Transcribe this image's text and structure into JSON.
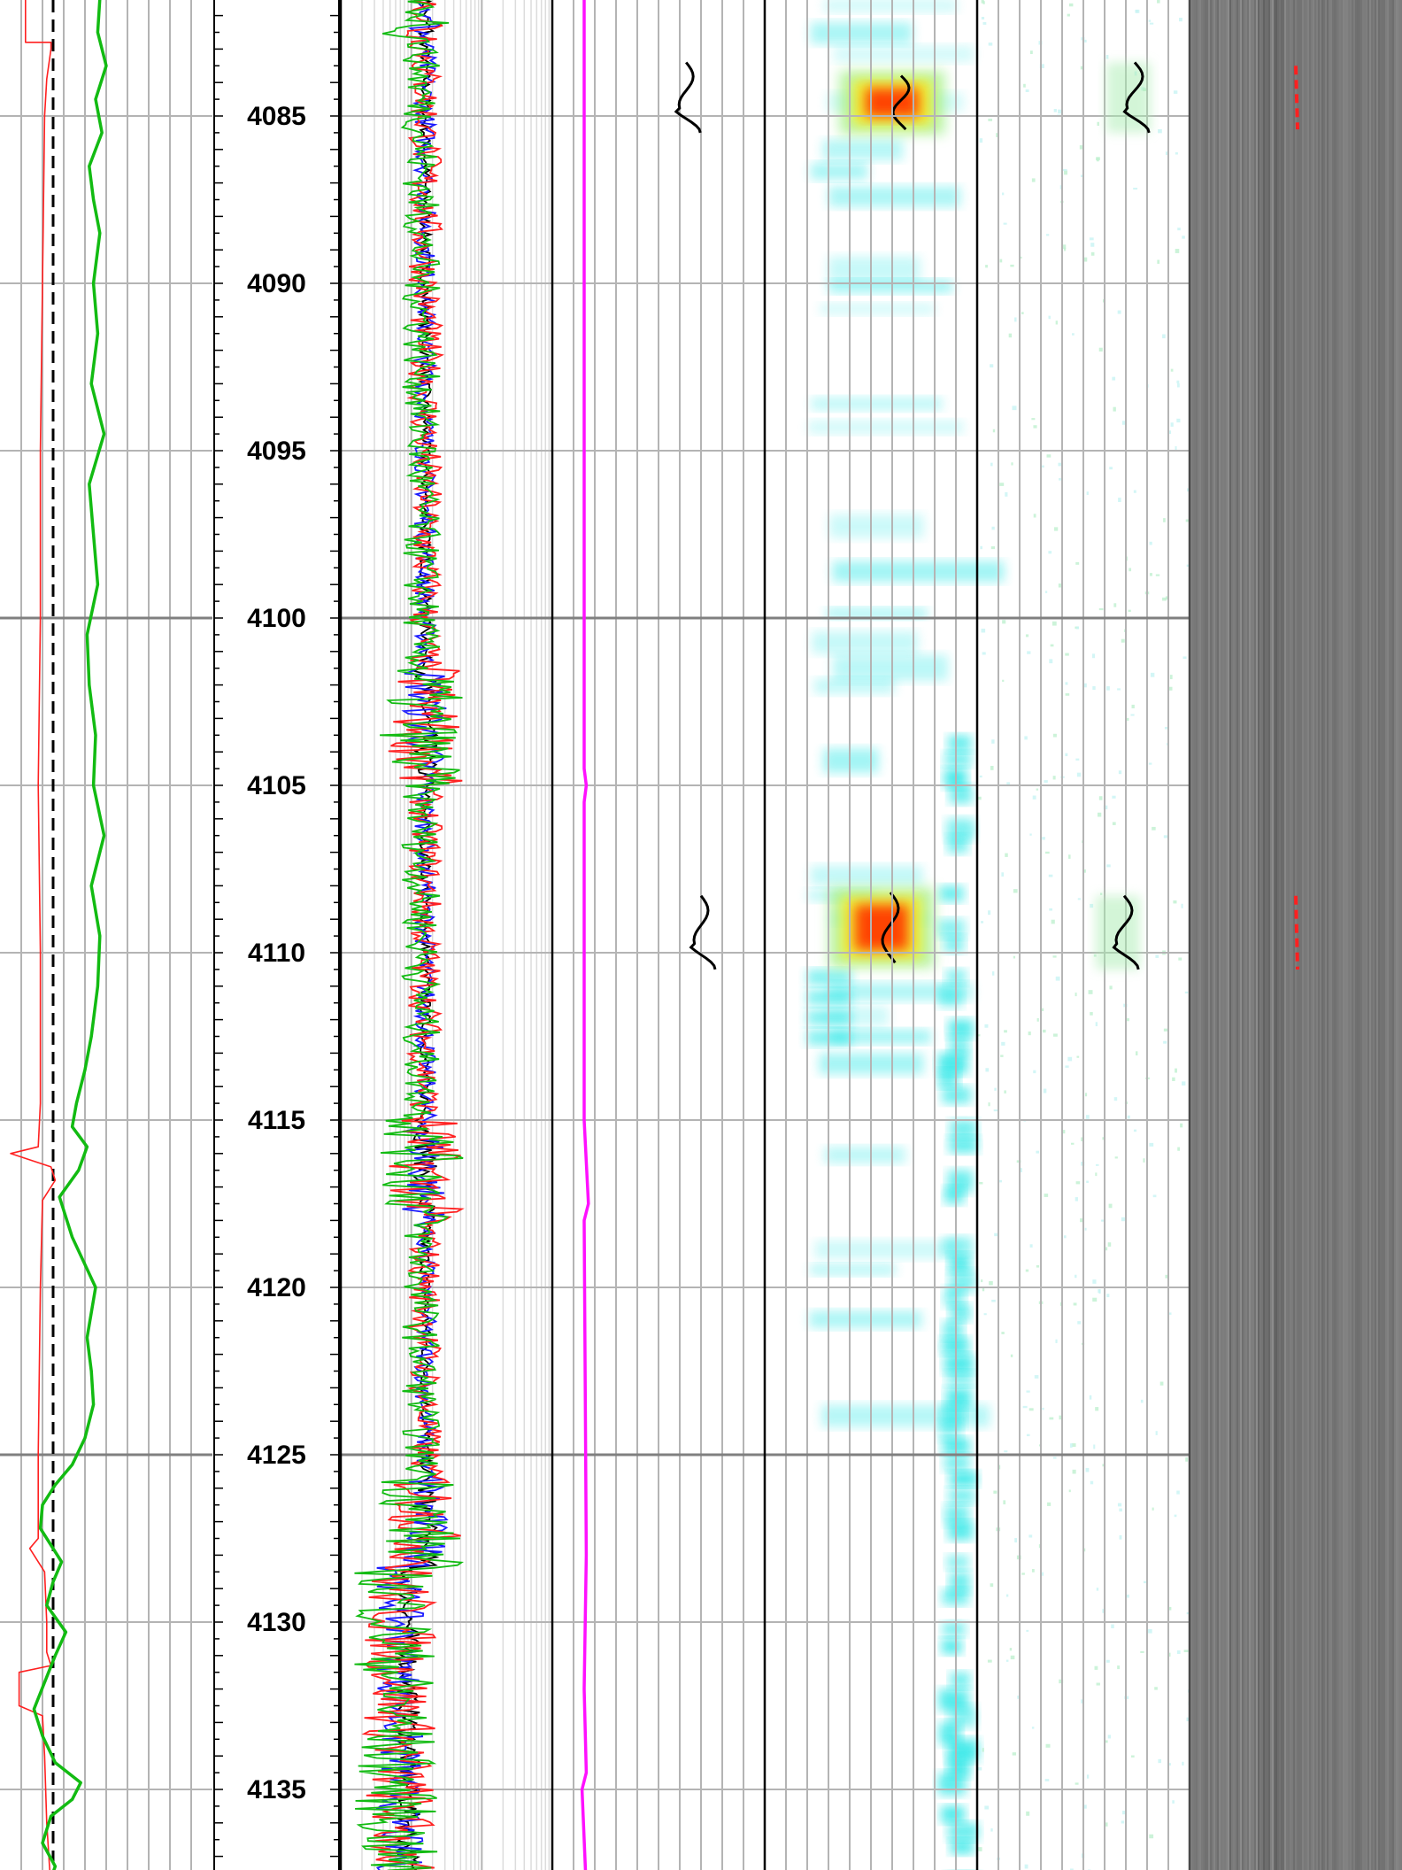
{
  "colors": {
    "background": "#ffffff",
    "grid": "#b4b4b4",
    "major_grid": "#808080",
    "track_border": "#000000",
    "red": "#ff2020",
    "green": "#12bb12",
    "blue": "#1a1aff",
    "magenta": "#ff10ff",
    "cyan": "#22e6e6",
    "black": "#000000",
    "image_gray": "#7c7c7c"
  },
  "chart_data": {
    "type": "line",
    "title": "",
    "depth_axis": {
      "range": [
        4081.5,
        4138.0
      ],
      "labels": [
        "4085",
        "4090",
        "4095",
        "4100",
        "4105",
        "4110",
        "4115",
        "4120",
        "4125",
        "4130",
        "4135"
      ],
      "major_depths": [
        4100,
        4125
      ],
      "minor_tick_interval": 0.5,
      "grid_interval": 5
    },
    "tracks": [
      {
        "name": "",
        "linear_grid_divisions": 5,
        "dashed_reference": true,
        "series": [
          {
            "color": "red",
            "style": "step",
            "points": [
              [
                4081.5,
                0.12
              ],
              [
                4081.7,
                0.12
              ],
              [
                4082.8,
                0.12
              ],
              [
                4082.8,
                0.24
              ],
              [
                4083.0,
                0.24
              ],
              [
                4083.9,
                0.22
              ],
              [
                4085,
                0.21
              ],
              [
                4090,
                0.2
              ],
              [
                4095,
                0.19
              ],
              [
                4100,
                0.19
              ],
              [
                4105,
                0.18
              ],
              [
                4110,
                0.19
              ],
              [
                4114.5,
                0.19
              ],
              [
                4115.8,
                0.18
              ],
              [
                4116.0,
                0.05
              ],
              [
                4116.4,
                0.24
              ],
              [
                4116.8,
                0.26
              ],
              [
                4117.4,
                0.2
              ],
              [
                4120,
                0.19
              ],
              [
                4125,
                0.18
              ],
              [
                4127.5,
                0.18
              ],
              [
                4127.8,
                0.14
              ],
              [
                4128.5,
                0.21
              ],
              [
                4130,
                0.22
              ],
              [
                4130.9,
                0.22
              ],
              [
                4131.3,
                0.24
              ],
              [
                4131.5,
                0.09
              ],
              [
                4132.5,
                0.09
              ],
              [
                4132.8,
                0.2
              ],
              [
                4134.0,
                0.21
              ],
              [
                4136.0,
                0.22
              ],
              [
                4138.0,
                0.24
              ]
            ]
          },
          {
            "color": "green",
            "style": "line",
            "points": [
              [
                4081.5,
                0.47
              ],
              [
                4082.5,
                0.46
              ],
              [
                4083.5,
                0.5
              ],
              [
                4084.5,
                0.45
              ],
              [
                4085.5,
                0.48
              ],
              [
                4086.5,
                0.42
              ],
              [
                4087.5,
                0.44
              ],
              [
                4088.5,
                0.47
              ],
              [
                4090,
                0.44
              ],
              [
                4091.5,
                0.46
              ],
              [
                4093,
                0.43
              ],
              [
                4094.5,
                0.49
              ],
              [
                4096,
                0.42
              ],
              [
                4097.5,
                0.44
              ],
              [
                4099,
                0.46
              ],
              [
                4100.5,
                0.41
              ],
              [
                4102,
                0.42
              ],
              [
                4103.5,
                0.45
              ],
              [
                4105,
                0.44
              ],
              [
                4106.5,
                0.49
              ],
              [
                4108,
                0.43
              ],
              [
                4109.5,
                0.47
              ],
              [
                4111,
                0.46
              ],
              [
                4112.5,
                0.43
              ],
              [
                4113.5,
                0.4
              ],
              [
                4114.5,
                0.36
              ],
              [
                4115.2,
                0.34
              ],
              [
                4115.8,
                0.41
              ],
              [
                4116.5,
                0.37
              ],
              [
                4117.3,
                0.28
              ],
              [
                4118.5,
                0.34
              ],
              [
                4120,
                0.45
              ],
              [
                4121.5,
                0.41
              ],
              [
                4122.5,
                0.43
              ],
              [
                4123.5,
                0.44
              ],
              [
                4124.5,
                0.4
              ],
              [
                4125.3,
                0.34
              ],
              [
                4125.9,
                0.26
              ],
              [
                4126.5,
                0.2
              ],
              [
                4127.2,
                0.19
              ],
              [
                4128.2,
                0.29
              ],
              [
                4128.8,
                0.25
              ],
              [
                4129.5,
                0.22
              ],
              [
                4130.3,
                0.31
              ],
              [
                4131.0,
                0.26
              ],
              [
                4131.8,
                0.21
              ],
              [
                4132.6,
                0.16
              ],
              [
                4133.4,
                0.2
              ],
              [
                4134.2,
                0.26
              ],
              [
                4134.8,
                0.38
              ],
              [
                4135.3,
                0.34
              ],
              [
                4135.8,
                0.24
              ],
              [
                4136.6,
                0.2
              ],
              [
                4137.3,
                0.26
              ],
              [
                4138.0,
                0.22
              ]
            ]
          }
        ]
      },
      {
        "name": "",
        "log_grid_decades": 3,
        "series": [
          {
            "color": "black",
            "base": 0.4,
            "noise": 0.025
          },
          {
            "color": "blue",
            "base": 0.4,
            "noise": 0.05
          },
          {
            "color": "red",
            "base": 0.4,
            "noise": 0.08
          },
          {
            "color": "green",
            "base": 0.38,
            "noise": 0.09
          }
        ],
        "breakouts": [
          [
            4082.2,
            4082.7
          ],
          [
            4101.5,
            4105.0
          ],
          [
            4115.0,
            4118.0
          ],
          [
            4125.5,
            4138.0
          ]
        ]
      },
      {
        "name": "",
        "linear_grid_divisions": 5,
        "series": [
          {
            "color": "magenta",
            "points": [
              [
                4081.5,
                0.15
              ],
              [
                4100,
                0.15
              ],
              [
                4104.5,
                0.15
              ],
              [
                4105,
                0.16
              ],
              [
                4105.5,
                0.15
              ],
              [
                4115,
                0.15
              ],
              [
                4117.5,
                0.17
              ],
              [
                4118,
                0.15
              ],
              [
                4128,
                0.16
              ],
              [
                4132,
                0.15
              ],
              [
                4134.5,
                0.16
              ],
              [
                4135,
                0.14
              ],
              [
                4138,
                0.16
              ]
            ]
          }
        ],
        "wiggles": [
          [
            4083.4,
            4085.5,
            0.63
          ],
          [
            4108.3,
            4110.5,
            0.7
          ]
        ]
      },
      {
        "name": "",
        "type": "heatmap",
        "linear_grid_divisions": 5,
        "hotspots": [
          [
            4083.8,
            4085.4,
            0.6
          ],
          [
            4108.2,
            4110.3,
            0.55
          ]
        ]
      },
      {
        "name": "",
        "linear_grid_divisions": 5,
        "wiggles": [
          [
            4083.4,
            4085.5,
            0.6
          ],
          [
            4108.3,
            4110.5,
            0.55
          ]
        ]
      },
      {
        "name": "",
        "type": "image",
        "red_marks": [
          [
            4083.5,
            4085.4
          ],
          [
            4108.3,
            4110.5
          ]
        ]
      }
    ]
  }
}
